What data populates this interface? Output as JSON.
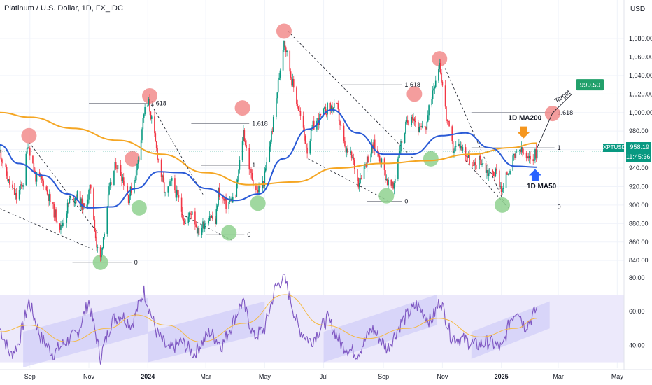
{
  "header": {
    "symbol_title": "Platinum / U.S. Dollar, 1D, FX_IDC",
    "currency": "USD"
  },
  "price_tag": {
    "symbol": "XPTUSD",
    "price": "958.19",
    "countdown": "11:45:36",
    "color": "#089981"
  },
  "colors": {
    "bull": "#089981",
    "bear": "#f23645",
    "ma50": "#2a5ad6",
    "ma200": "#f5a623",
    "rsi": "#7e57c2",
    "rsi_ma": "#f5b942",
    "rsi_band": "#ece9fb",
    "channel": "#c9c5f7",
    "top_marker": "#f28c8c",
    "bottom_marker": "#8fd18f",
    "target": "#22a06b",
    "arrow_orange": "#f5961e",
    "arrow_blue": "#2962ff"
  },
  "chart_data": [
    {
      "type": "candlestick",
      "title": "Platinum / U.S. Dollar, 1D, FX_IDC",
      "x_ticks": [
        "Sep",
        "Nov",
        "2024",
        "Mar",
        "May",
        "Jul",
        "Sep",
        "Nov",
        "2025",
        "Mar",
        "May"
      ],
      "x_tick_dates": [
        "2023-09-01",
        "2023-11-01",
        "2024-01-01",
        "2024-03-01",
        "2024-05-01",
        "2024-07-01",
        "2024-09-01",
        "2024-11-01",
        "2025-01-01",
        "2025-03-01",
        "2025-05-01"
      ],
      "y_ticks": [
        840,
        860,
        880,
        900,
        920,
        940,
        960,
        980,
        1000,
        1020,
        1040,
        1060,
        1080
      ],
      "y_tick_labels": [
        "840.00",
        "860.00",
        "880.00",
        "900.00",
        "920.00",
        "940.00",
        "960.00",
        "980.00",
        "1,000.00",
        "1,020.00",
        "1,040.00",
        "1,060.00",
        "1,080.00"
      ],
      "ylim": [
        825,
        1105
      ],
      "x_range": [
        "2023-08-01",
        "2025-05-08"
      ],
      "last_price": 958.19,
      "anchors": [
        [
          "2023-08-01",
          958
        ],
        [
          "2023-08-10",
          925
        ],
        [
          "2023-08-18",
          908
        ],
        [
          "2023-08-25",
          925
        ],
        [
          "2023-08-30",
          968
        ],
        [
          "2023-09-07",
          930
        ],
        [
          "2023-09-15",
          925
        ],
        [
          "2023-09-25",
          895
        ],
        [
          "2023-10-03",
          875
        ],
        [
          "2023-10-12",
          905
        ],
        [
          "2023-10-20",
          910
        ],
        [
          "2023-10-27",
          895
        ],
        [
          "2023-11-03",
          920
        ],
        [
          "2023-11-09",
          855
        ],
        [
          "2023-11-13",
          842
        ],
        [
          "2023-11-22",
          915
        ],
        [
          "2023-11-29",
          945
        ],
        [
          "2023-12-06",
          930
        ],
        [
          "2023-12-12",
          908
        ],
        [
          "2023-12-20",
          935
        ],
        [
          "2023-12-28",
          1000
        ],
        [
          "2024-01-02",
          1010
        ],
        [
          "2024-01-10",
          960
        ],
        [
          "2024-01-19",
          910
        ],
        [
          "2024-01-26",
          925
        ],
        [
          "2024-02-02",
          905
        ],
        [
          "2024-02-09",
          880
        ],
        [
          "2024-02-16",
          895
        ],
        [
          "2024-02-22",
          870
        ],
        [
          "2024-03-05",
          890
        ],
        [
          "2024-03-11",
          880
        ],
        [
          "2024-03-14",
          915
        ],
        [
          "2024-03-22",
          900
        ],
        [
          "2024-04-01",
          910
        ],
        [
          "2024-04-09",
          980
        ],
        [
          "2024-04-16",
          935
        ],
        [
          "2024-04-23",
          915
        ],
        [
          "2024-04-30",
          925
        ],
        [
          "2024-05-10",
          990
        ],
        [
          "2024-05-16",
          1040
        ],
        [
          "2024-05-21",
          1080
        ],
        [
          "2024-05-29",
          1035
        ],
        [
          "2024-06-06",
          1000
        ],
        [
          "2024-06-14",
          960
        ],
        [
          "2024-06-20",
          985
        ],
        [
          "2024-06-28",
          995
        ],
        [
          "2024-07-05",
          1005
        ],
        [
          "2024-07-15",
          1005
        ],
        [
          "2024-07-23",
          960
        ],
        [
          "2024-07-31",
          950
        ],
        [
          "2024-08-06",
          925
        ],
        [
          "2024-08-13",
          945
        ],
        [
          "2024-08-22",
          965
        ],
        [
          "2024-08-29",
          950
        ],
        [
          "2024-09-05",
          925
        ],
        [
          "2024-09-11",
          918
        ],
        [
          "2024-09-17",
          958
        ],
        [
          "2024-09-24",
          985
        ],
        [
          "2024-09-30",
          1000
        ],
        [
          "2024-10-08",
          980
        ],
        [
          "2024-10-15",
          985
        ],
        [
          "2024-10-22",
          1025
        ],
        [
          "2024-10-29",
          1055
        ],
        [
          "2024-11-05",
          995
        ],
        [
          "2024-11-12",
          960
        ],
        [
          "2024-11-19",
          965
        ],
        [
          "2024-11-26",
          955
        ],
        [
          "2024-12-03",
          940
        ],
        [
          "2024-12-10",
          950
        ],
        [
          "2024-12-18",
          935
        ],
        [
          "2024-12-27",
          935
        ],
        [
          "2025-01-02",
          915
        ],
        [
          "2025-01-07",
          935
        ],
        [
          "2025-01-14",
          950
        ],
        [
          "2025-01-20",
          960
        ],
        [
          "2025-01-24",
          955
        ],
        [
          "2025-01-29",
          948
        ],
        [
          "2025-02-03",
          952
        ],
        [
          "2025-02-07",
          958
        ]
      ],
      "ma50": [
        [
          "2023-08-01",
          965
        ],
        [
          "2023-08-20",
          945
        ],
        [
          "2023-09-15",
          932
        ],
        [
          "2023-10-10",
          912
        ],
        [
          "2023-11-01",
          897
        ],
        [
          "2023-11-25",
          898
        ],
        [
          "2023-12-20",
          918
        ],
        [
          "2024-01-12",
          936
        ],
        [
          "2024-02-05",
          935
        ],
        [
          "2024-03-01",
          918
        ],
        [
          "2024-04-01",
          905
        ],
        [
          "2024-04-25",
          912
        ],
        [
          "2024-05-20",
          950
        ],
        [
          "2024-06-15",
          982
        ],
        [
          "2024-07-10",
          1003
        ],
        [
          "2024-08-05",
          978
        ],
        [
          "2024-09-01",
          955
        ],
        [
          "2024-10-01",
          955
        ],
        [
          "2024-10-31",
          975
        ],
        [
          "2024-11-25",
          978
        ],
        [
          "2024-12-20",
          962
        ],
        [
          "2025-01-15",
          942
        ],
        [
          "2025-02-07",
          941
        ]
      ],
      "ma200": [
        [
          "2023-08-01",
          1000
        ],
        [
          "2023-09-01",
          995
        ],
        [
          "2023-10-15",
          983
        ],
        [
          "2023-12-01",
          970
        ],
        [
          "2024-01-15",
          955
        ],
        [
          "2024-03-01",
          935
        ],
        [
          "2024-04-15",
          922
        ],
        [
          "2024-06-01",
          925
        ],
        [
          "2024-07-15",
          940
        ],
        [
          "2024-09-01",
          945
        ],
        [
          "2024-10-15",
          948
        ],
        [
          "2024-12-01",
          955
        ],
        [
          "2025-01-10",
          962
        ],
        [
          "2025-02-07",
          967
        ]
      ],
      "ma_labels": [
        "1D MA200",
        "1D MA50"
      ],
      "fib_levels": [
        {
          "label": "1.618",
          "value": 1010,
          "from": "2023-11-01",
          "to": "2024-01-01"
        },
        {
          "label": "1.618",
          "value": 988,
          "from": "2024-02-15",
          "to": "2024-04-15"
        },
        {
          "label": "1",
          "value": 943,
          "from": "2024-02-25",
          "to": "2024-04-15"
        },
        {
          "label": "0",
          "value": 868,
          "from": "2024-03-01",
          "to": "2024-04-10"
        },
        {
          "label": "1.618",
          "value": 1030,
          "from": "2024-07-20",
          "to": "2024-09-20"
        },
        {
          "label": "0",
          "value": 904,
          "from": "2024-08-15",
          "to": "2024-09-20"
        },
        {
          "label": "0",
          "value": 838,
          "from": "2023-10-15",
          "to": "2023-12-15"
        },
        {
          "label": "1.618",
          "value": 1000,
          "from": "2024-12-01",
          "to": "2025-02-25"
        },
        {
          "label": "1",
          "value": 962,
          "from": "2024-12-01",
          "to": "2025-02-25"
        },
        {
          "label": "0",
          "value": 898,
          "from": "2024-12-01",
          "to": "2025-02-25"
        }
      ],
      "target": {
        "label": "Target",
        "value": 999.5,
        "value_label": "999.50",
        "date": "2025-02-23"
      },
      "top_markers": [
        [
          "2023-08-31",
          975
        ],
        [
          "2023-12-16",
          950
        ],
        [
          "2024-01-03",
          1018
        ],
        [
          "2024-04-08",
          1005
        ],
        [
          "2024-05-21",
          1088
        ],
        [
          "2024-10-03",
          1020
        ],
        [
          "2024-10-29",
          1058
        ],
        [
          "2025-02-23",
          999
        ]
      ],
      "bottom_markers": [
        [
          "2023-11-13",
          838
        ],
        [
          "2023-12-23",
          897
        ],
        [
          "2024-03-25",
          870
        ],
        [
          "2024-04-24",
          902
        ],
        [
          "2024-09-04",
          910
        ],
        [
          "2024-10-20",
          950
        ],
        [
          "2025-01-02",
          900
        ]
      ],
      "channel_lines": [
        {
          "from": [
            "2023-07-28",
            898
          ],
          "to": [
            "2023-11-05",
            852
          ]
        },
        {
          "from": [
            "2023-08-31",
            968
          ],
          "to": [
            "2023-11-10",
            870
          ]
        },
        {
          "from": [
            "2024-01-05",
            1008
          ],
          "to": [
            "2024-02-28",
            910
          ]
        },
        {
          "from": [
            "2024-02-05",
            890
          ],
          "to": [
            "2024-03-28",
            862
          ]
        },
        {
          "from": [
            "2024-05-25",
            1088
          ],
          "to": [
            "2024-10-05",
            947
          ]
        },
        {
          "from": [
            "2024-06-15",
            950
          ],
          "to": [
            "2024-09-05",
            905
          ]
        },
        {
          "from": [
            "2024-11-02",
            1052
          ],
          "to": [
            "2025-01-05",
            900
          ]
        },
        {
          "from": [
            "2024-11-25",
            948
          ],
          "to": [
            "2025-01-10",
            895
          ]
        }
      ]
    },
    {
      "type": "line",
      "title": "RSI",
      "y_ticks": [
        40,
        60,
        80
      ],
      "y_tick_labels": [
        "40.00",
        "60.00",
        "80.00"
      ],
      "ylim": [
        29,
        82
      ],
      "band": [
        30,
        70
      ],
      "series": [
        {
          "name": "",
          "values": [
            [
              "2023-08-01",
              50
            ],
            [
              "2023-08-12",
              34
            ],
            [
              "2023-08-20",
              41
            ],
            [
              "2023-08-31",
              66
            ],
            [
              "2023-09-12",
              45
            ],
            [
              "2023-09-25",
              35
            ],
            [
              "2023-10-08",
              42
            ],
            [
              "2023-10-20",
              47
            ],
            [
              "2023-11-01",
              66
            ],
            [
              "2023-11-13",
              33
            ],
            [
              "2023-11-25",
              55
            ],
            [
              "2023-12-05",
              58
            ],
            [
              "2023-12-15",
              52
            ],
            [
              "2023-12-28",
              72
            ],
            [
              "2024-01-10",
              48
            ],
            [
              "2024-01-22",
              37
            ],
            [
              "2024-02-05",
              42
            ],
            [
              "2024-02-18",
              35
            ],
            [
              "2024-03-05",
              48
            ],
            [
              "2024-03-18",
              40
            ],
            [
              "2024-04-08",
              66
            ],
            [
              "2024-04-20",
              45
            ],
            [
              "2024-05-01",
              50
            ],
            [
              "2024-05-12",
              74
            ],
            [
              "2024-05-21",
              81
            ],
            [
              "2024-06-05",
              50
            ],
            [
              "2024-06-18",
              42
            ],
            [
              "2024-07-05",
              56
            ],
            [
              "2024-07-20",
              40
            ],
            [
              "2024-08-05",
              35
            ],
            [
              "2024-08-20",
              50
            ],
            [
              "2024-09-05",
              38
            ],
            [
              "2024-09-20",
              54
            ],
            [
              "2024-10-05",
              64
            ],
            [
              "2024-10-20",
              54
            ],
            [
              "2024-10-30",
              67
            ],
            [
              "2024-11-10",
              45
            ],
            [
              "2024-11-25",
              43
            ],
            [
              "2024-12-05",
              40
            ],
            [
              "2024-12-20",
              42
            ],
            [
              "2025-01-02",
              38
            ],
            [
              "2025-01-10",
              55
            ],
            [
              "2025-01-18",
              62
            ],
            [
              "2025-01-25",
              51
            ],
            [
              "2025-02-01",
              56
            ],
            [
              "2025-02-07",
              62
            ]
          ]
        }
      ],
      "rsi_ma": [
        [
          "2023-08-01",
          48
        ],
        [
          "2023-08-31",
          52
        ],
        [
          "2023-10-10",
          42
        ],
        [
          "2023-11-20",
          50
        ],
        [
          "2023-12-20",
          58
        ],
        [
          "2024-01-20",
          52
        ],
        [
          "2024-02-25",
          42
        ],
        [
          "2024-04-10",
          53
        ],
        [
          "2024-05-22",
          70
        ],
        [
          "2024-07-01",
          52
        ],
        [
          "2024-08-15",
          44
        ],
        [
          "2024-09-25",
          50
        ],
        [
          "2024-10-28",
          56
        ],
        [
          "2024-12-10",
          45
        ],
        [
          "2025-01-15",
          50
        ],
        [
          "2025-02-07",
          56
        ]
      ],
      "channels": [
        {
          "from": "2023-08-25",
          "to": "2024-01-01",
          "lower": [
            27,
            47
          ],
          "upper": [
            48,
            68
          ]
        },
        {
          "from": "2024-01-01",
          "to": "2024-05-01",
          "lower": [
            30,
            47
          ],
          "upper": [
            48,
            66
          ]
        },
        {
          "from": "2024-07-01",
          "to": "2024-10-26",
          "lower": [
            30,
            52
          ],
          "upper": [
            48,
            70
          ]
        },
        {
          "from": "2024-12-01",
          "to": "2025-02-20",
          "lower": [
            32,
            50
          ],
          "upper": [
            48,
            66
          ]
        }
      ]
    }
  ]
}
